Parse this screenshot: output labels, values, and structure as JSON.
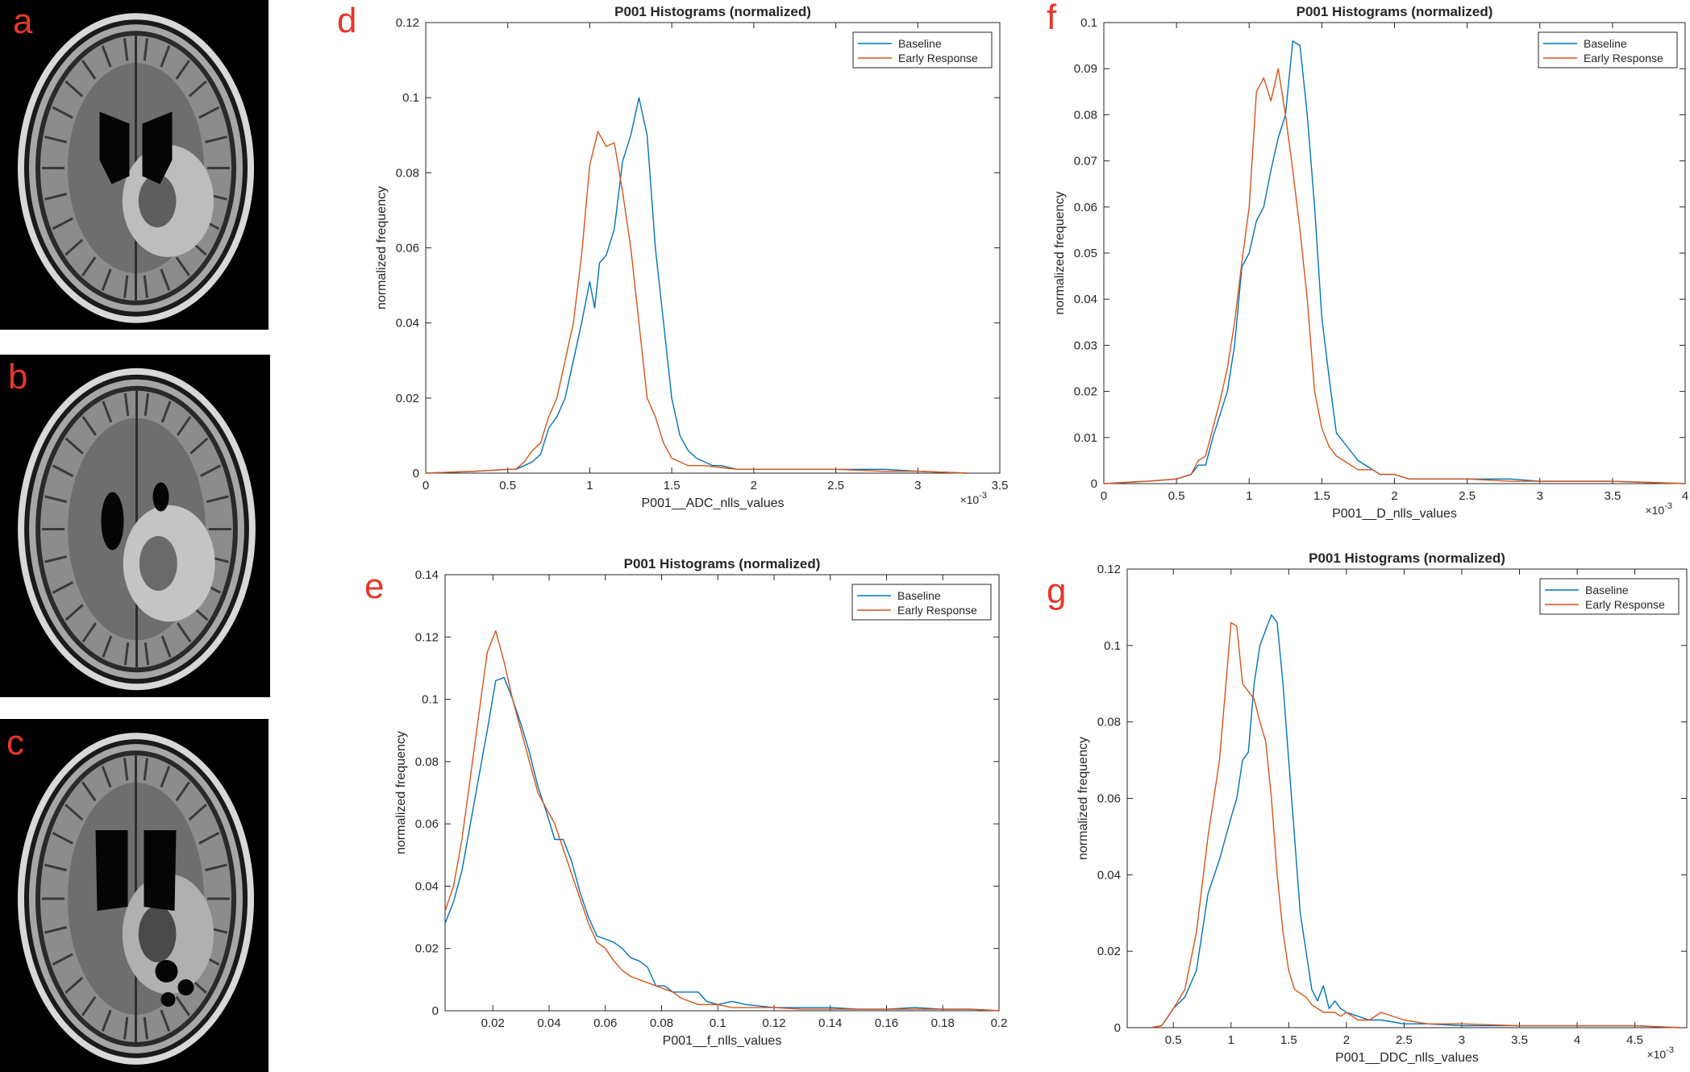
{
  "panel_labels": {
    "a": "a",
    "b": "b",
    "c": "c",
    "d": "d",
    "e": "e",
    "f": "f",
    "g": "g"
  },
  "images": [
    {
      "panel": "a",
      "description": "Axial FLAIR brain MRI, baseline"
    },
    {
      "panel": "b",
      "description": "Axial FLAIR brain MRI"
    },
    {
      "panel": "c",
      "description": "Axial FLAIR brain MRI"
    }
  ],
  "colors": {
    "baseline": "#0072BD",
    "early_response": "#D95319",
    "label_red": "#e8362a"
  },
  "chart_data": [
    {
      "panel": "d",
      "type": "line",
      "title": "P001 Histograms (normalized)",
      "xlabel": "P001__ADC_nlls_values",
      "ylabel": "normalized frequency",
      "x_multiplier": "×10^-3",
      "xlim": [
        0,
        3.5
      ],
      "ylim": [
        0,
        0.12
      ],
      "xticks": [
        0,
        0.5,
        1,
        1.5,
        2,
        2.5,
        3,
        3.5
      ],
      "xtick_labels": [
        "0",
        "0.5",
        "1",
        "1.5",
        "2",
        "2.5",
        "3",
        "3.5"
      ],
      "yticks": [
        0,
        0.02,
        0.04,
        0.06,
        0.08,
        0.1,
        0.12
      ],
      "ytick_labels": [
        "0",
        "0.02",
        "0.04",
        "0.06",
        "0.08",
        "0.1",
        "0.12"
      ],
      "legend": [
        "Baseline",
        "Early Response"
      ],
      "series": [
        {
          "name": "Baseline",
          "color": "#0072BD",
          "x": [
            0,
            0.3,
            0.5,
            0.55,
            0.6,
            0.65,
            0.7,
            0.75,
            0.8,
            0.85,
            0.9,
            0.95,
            1.0,
            1.03,
            1.06,
            1.1,
            1.15,
            1.2,
            1.25,
            1.3,
            1.35,
            1.4,
            1.45,
            1.5,
            1.55,
            1.6,
            1.65,
            1.7,
            1.75,
            1.8,
            1.85,
            1.9,
            2.0,
            2.1,
            2.2,
            2.5,
            2.8,
            3.0,
            3.3
          ],
          "y": [
            0,
            0.0005,
            0.001,
            0.001,
            0.002,
            0.003,
            0.005,
            0.012,
            0.015,
            0.02,
            0.03,
            0.04,
            0.051,
            0.044,
            0.056,
            0.058,
            0.065,
            0.083,
            0.09,
            0.1,
            0.09,
            0.06,
            0.04,
            0.02,
            0.01,
            0.006,
            0.004,
            0.003,
            0.002,
            0.002,
            0.0015,
            0.001,
            0.001,
            0.001,
            0.001,
            0.001,
            0.001,
            0.0005,
            0
          ]
        },
        {
          "name": "Early Response",
          "color": "#D95319",
          "x": [
            0,
            0.3,
            0.5,
            0.55,
            0.6,
            0.65,
            0.7,
            0.75,
            0.8,
            0.85,
            0.9,
            0.95,
            1.0,
            1.05,
            1.1,
            1.15,
            1.2,
            1.25,
            1.3,
            1.35,
            1.4,
            1.45,
            1.5,
            1.55,
            1.6,
            1.65,
            1.7,
            1.8,
            1.9,
            2.0,
            2.1,
            2.2,
            2.5,
            2.8,
            3.0,
            3.3
          ],
          "y": [
            0,
            0.0005,
            0.001,
            0.001,
            0.003,
            0.006,
            0.008,
            0.015,
            0.02,
            0.03,
            0.04,
            0.058,
            0.082,
            0.091,
            0.087,
            0.088,
            0.075,
            0.06,
            0.04,
            0.02,
            0.015,
            0.008,
            0.004,
            0.003,
            0.002,
            0.002,
            0.002,
            0.0015,
            0.001,
            0.001,
            0.001,
            0.001,
            0.001,
            0.0005,
            0.0005,
            0
          ]
        }
      ]
    },
    {
      "panel": "e",
      "type": "line",
      "title": "P001 Histograms (normalized)",
      "xlabel": "P001__f_nlls_values",
      "ylabel": "normalized frequency",
      "xlim": [
        0.003,
        0.2
      ],
      "ylim": [
        0,
        0.14
      ],
      "xticks": [
        0.02,
        0.04,
        0.06,
        0.08,
        0.1,
        0.12,
        0.14,
        0.16,
        0.18,
        0.2
      ],
      "xtick_labels": [
        "0.02",
        "0.04",
        "0.06",
        "0.08",
        "0.1",
        "0.12",
        "0.14",
        "0.16",
        "0.18",
        "0.2"
      ],
      "yticks": [
        0,
        0.02,
        0.04,
        0.06,
        0.08,
        0.1,
        0.12,
        0.14
      ],
      "ytick_labels": [
        "0",
        "0.02",
        "0.04",
        "0.06",
        "0.08",
        "0.1",
        "0.12",
        "0.14"
      ],
      "legend": [
        "Baseline",
        "Early Response"
      ],
      "series": [
        {
          "name": "Baseline",
          "color": "#0072BD",
          "x": [
            0.003,
            0.006,
            0.009,
            0.012,
            0.015,
            0.018,
            0.021,
            0.024,
            0.027,
            0.03,
            0.033,
            0.036,
            0.039,
            0.042,
            0.045,
            0.048,
            0.051,
            0.054,
            0.057,
            0.06,
            0.063,
            0.066,
            0.069,
            0.072,
            0.075,
            0.078,
            0.081,
            0.084,
            0.087,
            0.09,
            0.093,
            0.096,
            0.1,
            0.105,
            0.11,
            0.12,
            0.13,
            0.14,
            0.15,
            0.16,
            0.17,
            0.18,
            0.19,
            0.2
          ],
          "y": [
            0.028,
            0.035,
            0.045,
            0.06,
            0.075,
            0.09,
            0.106,
            0.107,
            0.1,
            0.092,
            0.083,
            0.072,
            0.064,
            0.055,
            0.055,
            0.048,
            0.038,
            0.03,
            0.024,
            0.023,
            0.022,
            0.02,
            0.017,
            0.016,
            0.014,
            0.008,
            0.008,
            0.006,
            0.006,
            0.006,
            0.006,
            0.003,
            0.002,
            0.003,
            0.002,
            0.001,
            0.001,
            0.001,
            0.0005,
            0.0005,
            0.001,
            0.0005,
            0.0005,
            0
          ]
        },
        {
          "name": "Early Response",
          "color": "#D95319",
          "x": [
            0.003,
            0.006,
            0.009,
            0.012,
            0.015,
            0.018,
            0.021,
            0.024,
            0.027,
            0.03,
            0.033,
            0.036,
            0.039,
            0.042,
            0.045,
            0.048,
            0.051,
            0.054,
            0.057,
            0.06,
            0.063,
            0.066,
            0.069,
            0.072,
            0.075,
            0.078,
            0.081,
            0.084,
            0.087,
            0.09,
            0.093,
            0.096,
            0.1,
            0.105,
            0.11,
            0.12,
            0.13,
            0.14,
            0.15,
            0.16,
            0.17,
            0.18,
            0.19,
            0.2
          ],
          "y": [
            0.032,
            0.04,
            0.055,
            0.075,
            0.095,
            0.115,
            0.122,
            0.112,
            0.1,
            0.09,
            0.08,
            0.07,
            0.065,
            0.06,
            0.052,
            0.044,
            0.036,
            0.028,
            0.022,
            0.02,
            0.016,
            0.013,
            0.011,
            0.01,
            0.009,
            0.008,
            0.007,
            0.006,
            0.004,
            0.003,
            0.002,
            0.002,
            0.002,
            0.001,
            0.001,
            0.001,
            0.0005,
            0.0005,
            0.0005,
            0.0005,
            0.0005,
            0.0005,
            0.0005,
            0
          ]
        }
      ]
    },
    {
      "panel": "f",
      "type": "line",
      "title": "P001 Histograms (normalized)",
      "xlabel": "P001__D_nlls_values",
      "ylabel": "normalized frequency",
      "x_multiplier": "×10^-3",
      "xlim": [
        0,
        4
      ],
      "ylim": [
        0,
        0.1
      ],
      "xticks": [
        0,
        0.5,
        1,
        1.5,
        2,
        2.5,
        3,
        3.5,
        4
      ],
      "xtick_labels": [
        "0",
        "0.5",
        "1",
        "1.5",
        "2",
        "2.5",
        "3",
        "3.5",
        "4"
      ],
      "yticks": [
        0,
        0.01,
        0.02,
        0.03,
        0.04,
        0.05,
        0.06,
        0.07,
        0.08,
        0.09,
        0.1
      ],
      "ytick_labels": [
        "0",
        "0.01",
        "0.02",
        "0.03",
        "0.04",
        "0.05",
        "0.06",
        "0.07",
        "0.08",
        "0.09",
        "0.1"
      ],
      "legend": [
        "Baseline",
        "Early Response"
      ],
      "series": [
        {
          "name": "Baseline",
          "color": "#0072BD",
          "x": [
            0,
            0.3,
            0.5,
            0.6,
            0.65,
            0.7,
            0.75,
            0.8,
            0.85,
            0.9,
            0.95,
            1.0,
            1.05,
            1.1,
            1.15,
            1.2,
            1.25,
            1.3,
            1.35,
            1.4,
            1.45,
            1.5,
            1.55,
            1.6,
            1.65,
            1.7,
            1.75,
            1.8,
            1.85,
            1.9,
            2.0,
            2.1,
            2.2,
            2.5,
            2.8,
            3.0,
            3.5,
            4.0
          ],
          "y": [
            0,
            0.0005,
            0.001,
            0.002,
            0.004,
            0.004,
            0.01,
            0.015,
            0.02,
            0.03,
            0.047,
            0.05,
            0.057,
            0.06,
            0.068,
            0.075,
            0.08,
            0.096,
            0.095,
            0.08,
            0.06,
            0.036,
            0.023,
            0.011,
            0.009,
            0.007,
            0.005,
            0.004,
            0.003,
            0.002,
            0.002,
            0.001,
            0.001,
            0.001,
            0.001,
            0.0005,
            0.0005,
            0
          ]
        },
        {
          "name": "Early Response",
          "color": "#D95319",
          "x": [
            0,
            0.3,
            0.5,
            0.6,
            0.65,
            0.7,
            0.75,
            0.8,
            0.85,
            0.9,
            0.95,
            1.0,
            1.05,
            1.1,
            1.15,
            1.2,
            1.25,
            1.3,
            1.35,
            1.4,
            1.45,
            1.5,
            1.55,
            1.6,
            1.65,
            1.7,
            1.75,
            1.8,
            1.85,
            1.9,
            2.0,
            2.1,
            2.2,
            2.5,
            2.8,
            3.0,
            3.5,
            4.0
          ],
          "y": [
            0,
            0.0005,
            0.001,
            0.002,
            0.005,
            0.006,
            0.012,
            0.018,
            0.025,
            0.035,
            0.048,
            0.06,
            0.085,
            0.088,
            0.083,
            0.09,
            0.08,
            0.068,
            0.055,
            0.04,
            0.02,
            0.012,
            0.008,
            0.006,
            0.005,
            0.004,
            0.003,
            0.003,
            0.003,
            0.002,
            0.002,
            0.001,
            0.001,
            0.001,
            0.0005,
            0.0005,
            0.0005,
            0
          ]
        }
      ]
    },
    {
      "panel": "g",
      "type": "line",
      "title": "P001 Histograms (normalized)",
      "xlabel": "P001__DDC_nlls_values",
      "ylabel": "normalized frequency",
      "x_multiplier": "×10^-3",
      "xlim": [
        0.1,
        4.95
      ],
      "ylim": [
        0,
        0.12
      ],
      "xticks": [
        0.5,
        1,
        1.5,
        2,
        2.5,
        3,
        3.5,
        4,
        4.5
      ],
      "xtick_labels": [
        "0.5",
        "1",
        "1.5",
        "2",
        "2.5",
        "3",
        "3.5",
        "4",
        "4.5"
      ],
      "yticks": [
        0,
        0.02,
        0.04,
        0.06,
        0.08,
        0.1,
        0.12
      ],
      "ytick_labels": [
        "0",
        "0.02",
        "0.04",
        "0.06",
        "0.08",
        "0.1",
        "0.12"
      ],
      "legend": [
        "Baseline",
        "Early Response"
      ],
      "series": [
        {
          "name": "Baseline",
          "color": "#0072BD",
          "x": [
            0.3,
            0.4,
            0.5,
            0.6,
            0.7,
            0.8,
            0.9,
            1.0,
            1.05,
            1.1,
            1.15,
            1.2,
            1.25,
            1.3,
            1.35,
            1.4,
            1.45,
            1.5,
            1.55,
            1.6,
            1.65,
            1.7,
            1.75,
            1.8,
            1.85,
            1.9,
            1.95,
            2.0,
            2.1,
            2.2,
            2.3,
            2.5,
            2.7,
            3.0,
            3.5,
            4.0,
            4.5,
            4.9
          ],
          "y": [
            0,
            0.0005,
            0.005,
            0.008,
            0.015,
            0.035,
            0.044,
            0.055,
            0.06,
            0.07,
            0.072,
            0.09,
            0.1,
            0.104,
            0.108,
            0.106,
            0.09,
            0.07,
            0.05,
            0.03,
            0.02,
            0.01,
            0.007,
            0.011,
            0.005,
            0.007,
            0.005,
            0.004,
            0.003,
            0.002,
            0.002,
            0.001,
            0.001,
            0.0005,
            0.0005,
            0.0005,
            0.0005,
            0
          ]
        },
        {
          "name": "Early Response",
          "color": "#D95319",
          "x": [
            0.3,
            0.4,
            0.5,
            0.6,
            0.7,
            0.8,
            0.9,
            1.0,
            1.05,
            1.1,
            1.15,
            1.2,
            1.25,
            1.3,
            1.35,
            1.4,
            1.45,
            1.5,
            1.55,
            1.6,
            1.65,
            1.7,
            1.75,
            1.8,
            1.85,
            1.9,
            1.95,
            2.0,
            2.1,
            2.2,
            2.3,
            2.5,
            2.7,
            3.0,
            3.5,
            4.0,
            4.5,
            4.9
          ],
          "y": [
            0,
            0.0005,
            0.005,
            0.01,
            0.025,
            0.05,
            0.07,
            0.106,
            0.105,
            0.09,
            0.088,
            0.086,
            0.08,
            0.075,
            0.06,
            0.04,
            0.025,
            0.015,
            0.01,
            0.009,
            0.008,
            0.006,
            0.005,
            0.004,
            0.004,
            0.004,
            0.003,
            0.004,
            0.002,
            0.002,
            0.004,
            0.002,
            0.001,
            0.001,
            0.0005,
            0.0005,
            0.0005,
            0
          ]
        }
      ]
    }
  ]
}
